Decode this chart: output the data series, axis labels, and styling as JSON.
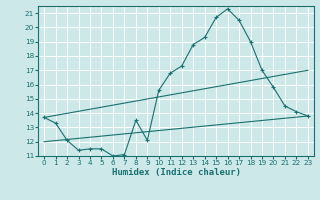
{
  "xlabel": "Humidex (Indice chaleur)",
  "ylabel": "",
  "bg_color": "#cde8e8",
  "grid_color": "#ffffff",
  "line_color": "#1a7070",
  "x_min": -0.5,
  "x_max": 23.5,
  "y_min": 11,
  "y_max": 21.5,
  "line1_x": [
    0,
    1,
    2,
    3,
    4,
    5,
    6,
    7,
    8,
    9,
    10,
    11,
    12,
    13,
    14,
    15,
    16,
    17,
    18,
    19,
    20,
    21,
    22,
    23
  ],
  "line1_y": [
    13.7,
    13.3,
    12.1,
    11.4,
    11.5,
    11.5,
    11.0,
    11.1,
    13.5,
    12.1,
    15.6,
    16.8,
    17.3,
    18.8,
    19.3,
    20.7,
    21.3,
    20.5,
    19.0,
    17.0,
    15.8,
    14.5,
    14.1,
    13.8
  ],
  "line2_x": [
    0,
    23
  ],
  "line2_y": [
    13.7,
    17.0
  ],
  "line3_x": [
    0,
    23
  ],
  "line3_y": [
    12.0,
    13.8
  ],
  "xticks": [
    0,
    1,
    2,
    3,
    4,
    5,
    6,
    7,
    8,
    9,
    10,
    11,
    12,
    13,
    14,
    15,
    16,
    17,
    18,
    19,
    20,
    21,
    22,
    23
  ],
  "yticks": [
    11,
    12,
    13,
    14,
    15,
    16,
    17,
    18,
    19,
    20,
    21
  ],
  "tick_fontsize": 5.2,
  "xlabel_fontsize": 6.5
}
